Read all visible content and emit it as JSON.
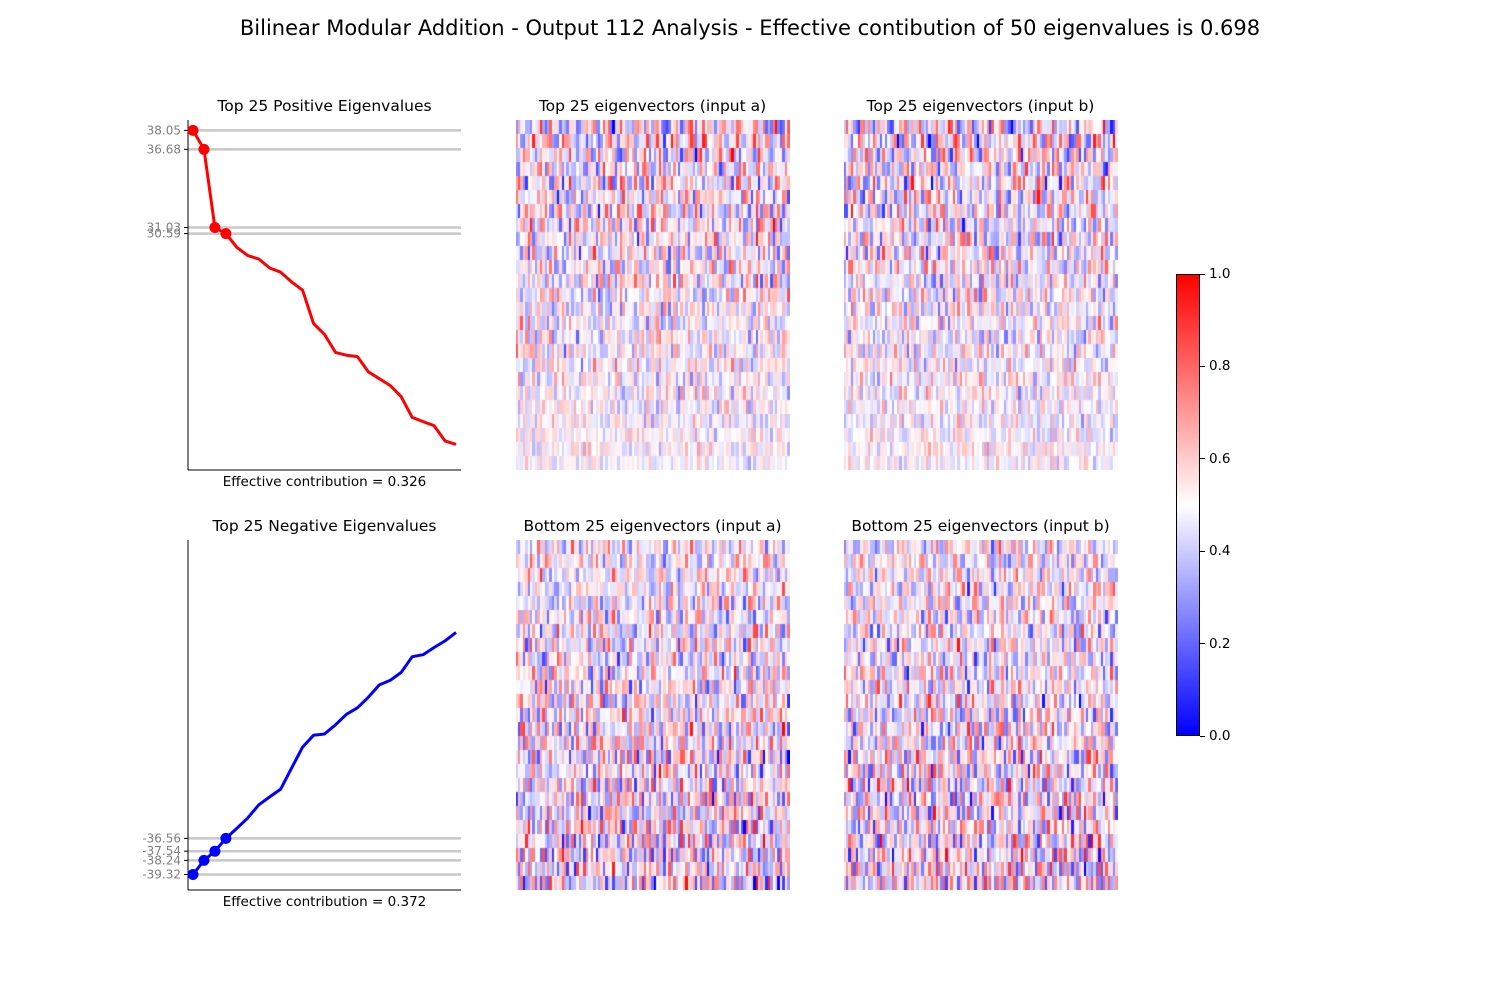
{
  "figure": {
    "title": "Bilinear Modular Addition - Output 112 Analysis - Effective contibution of 50 eigenvalues is 0.698"
  },
  "colors": {
    "positive": "#ff0000",
    "negative": "#0000ff",
    "reference_line": "#c8c8c8",
    "tick_label": "#808080"
  },
  "chart_data": [
    {
      "type": "line",
      "panel": "top-left",
      "title": "Top 25 Positive Eigenvalues",
      "xlabel": "Effective contribution = 0.326",
      "n_points": 25,
      "ylim": [
        13.5,
        38.8
      ],
      "values": [
        38.05,
        36.68,
        31.03,
        30.59,
        29.6,
        29.0,
        28.75,
        28.1,
        27.8,
        27.1,
        26.5,
        24.1,
        23.3,
        22.0,
        21.8,
        21.7,
        20.6,
        20.1,
        19.6,
        18.8,
        17.3,
        17.0,
        16.7,
        15.6,
        15.35
      ],
      "highlighted": [
        38.05,
        36.68,
        31.03,
        30.59
      ],
      "yticks": [
        "38.05",
        "36.68",
        "31.03",
        "30.59"
      ],
      "color": "#ff0000"
    },
    {
      "type": "line",
      "panel": "bottom-left",
      "title": "Top 25 Negative Eigenvalues",
      "xlabel": "Effective contribution = 0.372",
      "n_points": 25,
      "ylim": [
        -40.5,
        -13.8
      ],
      "values": [
        -39.32,
        -38.24,
        -37.54,
        -36.56,
        -35.8,
        -35.0,
        -34.0,
        -33.4,
        -32.8,
        -31.2,
        -29.6,
        -28.7,
        -28.6,
        -27.9,
        -27.1,
        -26.6,
        -25.8,
        -24.85,
        -24.5,
        -23.9,
        -22.7,
        -22.55,
        -22.0,
        -21.5,
        -20.85
      ],
      "highlighted": [
        -39.32,
        -38.24,
        -37.54,
        -36.56
      ],
      "yticks": [
        "-36.56",
        "-37.54",
        "-38.24",
        "-39.32"
      ],
      "color": "#0000ff"
    },
    {
      "type": "heatmap",
      "panel": "top-middle",
      "title": "Top 25 eigenvectors (input a)",
      "rows": 25,
      "cols": 113,
      "colormap": "bwr",
      "note": "high-contrast rows near the top, fading toward the bottom",
      "seed": 11,
      "profile": "fade"
    },
    {
      "type": "heatmap",
      "panel": "top-right",
      "title": "Top 25 eigenvectors (input b)",
      "rows": 25,
      "cols": 113,
      "colormap": "bwr",
      "seed": 23,
      "profile": "fade"
    },
    {
      "type": "heatmap",
      "panel": "bottom-middle",
      "title": "Bottom 25 eigenvectors (input a)",
      "rows": 25,
      "cols": 113,
      "colormap": "bwr",
      "seed": 37,
      "profile": "grow"
    },
    {
      "type": "heatmap",
      "panel": "bottom-right",
      "title": "Bottom 25 eigenvectors (input b)",
      "rows": 25,
      "cols": 113,
      "colormap": "bwr",
      "seed": 53,
      "profile": "grow"
    }
  ],
  "colorbar": {
    "colormap": "bwr",
    "range": [
      0.0,
      1.0
    ],
    "ticks": [
      "1.0",
      "0.8",
      "0.6",
      "0.4",
      "0.2",
      "0.0"
    ]
  }
}
